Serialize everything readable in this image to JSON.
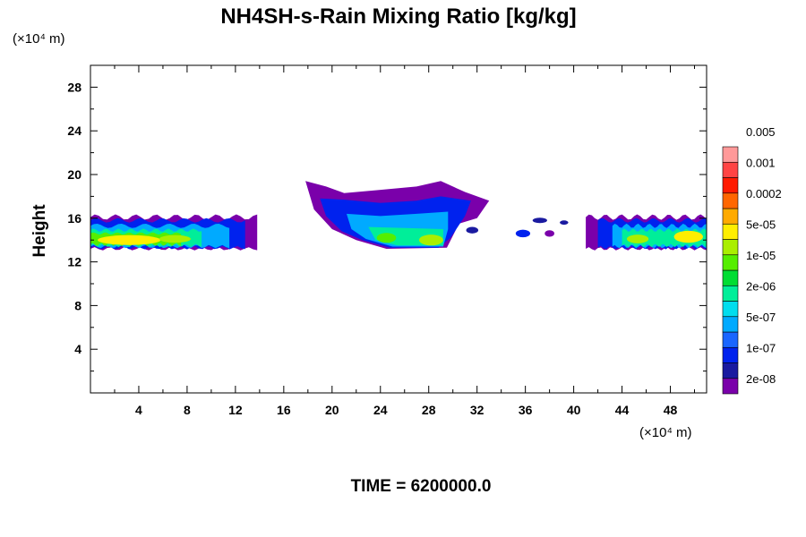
{
  "chart_data": {
    "type": "heatmap",
    "title": "NH4SH-s-Rain Mixing Ratio [kg/kg]",
    "ylabel": "Height",
    "xlabel": "",
    "x_units": "(×10⁴ m)",
    "y_units": "(×10⁴ m)",
    "xlim": [
      0,
      51
    ],
    "ylim": [
      0,
      30
    ],
    "x_ticks": [
      "4",
      "8",
      "12",
      "16",
      "20",
      "24",
      "28",
      "32",
      "36",
      "40",
      "44",
      "48"
    ],
    "y_ticks": [
      "4",
      "8",
      "12",
      "16",
      "20",
      "24",
      "28"
    ],
    "grid": false,
    "footer": "TIME = 6200000.0",
    "colorbar": {
      "labels": [
        "2e-08",
        "1e-07",
        "5e-07",
        "2e-06",
        "1e-05",
        "5e-05",
        "0.0002",
        "0.001",
        "0.005"
      ],
      "colors": [
        "#7a00aa",
        "#1a1aa0",
        "#0022ee",
        "#1a66ff",
        "#00aaff",
        "#00ddee",
        "#00ee99",
        "#00dd33",
        "#55ee00",
        "#aaee00",
        "#ffee00",
        "#ffaa00",
        "#ff6600",
        "#ff1a00",
        "#ff4444",
        "#ff9999"
      ]
    },
    "regions": [
      {
        "name": "left-cloud",
        "x": [
          0,
          13.8
        ],
        "y_base": 13.2,
        "y_top": 16.3,
        "peak": "5e-05"
      },
      {
        "name": "center-cloud",
        "x": [
          17.8,
          33
        ],
        "y_base": 13.2,
        "y_top": 19.6,
        "peak": "1e-05"
      },
      {
        "name": "small-cells",
        "x": [
          34,
          41
        ],
        "y_base": 14.2,
        "y_top": 16.0,
        "peak": "5e-07"
      },
      {
        "name": "right-cloud",
        "x": [
          41,
          51
        ],
        "y_base": 13.2,
        "y_top": 16.3,
        "peak": "5e-05"
      }
    ]
  }
}
